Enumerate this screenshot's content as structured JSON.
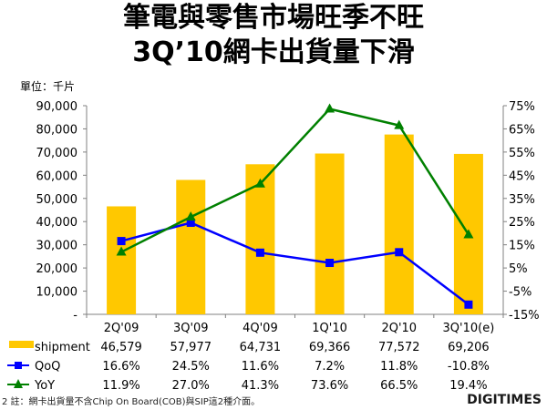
{
  "title_line1": "筆電與零售市場旺季不旺",
  "title_line2": "3Q’10網卡出貨量下滑",
  "unit_label": "單位：千片",
  "footnote": "註：網卡出貨量不含Chip On Board(COB)與SIP這2種介面。",
  "logo": "DIGITIMES",
  "chart_data": {
    "type": "bar",
    "categories": [
      "2Q'09",
      "3Q'09",
      "4Q'09",
      "1Q'10",
      "2Q'10",
      "3Q'10(e)"
    ],
    "left_axis": {
      "ylim": [
        0,
        90000
      ],
      "ticks": [
        "-",
        "10,000",
        "20,000",
        "30,000",
        "40,000",
        "50,000",
        "60,000",
        "70,000",
        "80,000",
        "90,000"
      ]
    },
    "right_axis": {
      "ylim": [
        -15,
        75
      ],
      "ticks": [
        "-15%",
        "-5%",
        "5%",
        "15%",
        "25%",
        "35%",
        "45%",
        "55%",
        "65%",
        "75%"
      ]
    },
    "series": [
      {
        "name": "shipment",
        "kind": "bar",
        "axis": "left",
        "color": "#FFC800",
        "values": [
          46579,
          57977,
          64731,
          69366,
          77572,
          69206
        ],
        "labels": [
          "46,579",
          "57,977",
          "64,731",
          "69,366",
          "77,572",
          "69,206"
        ]
      },
      {
        "name": "QoQ",
        "kind": "line",
        "marker": "square",
        "axis": "right",
        "color": "#0000FF",
        "values": [
          16.6,
          24.5,
          11.6,
          7.2,
          11.8,
          -10.8
        ],
        "labels": [
          "16.6%",
          "24.5%",
          "11.6%",
          "7.2%",
          "11.8%",
          "-10.8%"
        ]
      },
      {
        "name": "YoY",
        "kind": "line",
        "marker": "triangle",
        "axis": "right",
        "color": "#008000",
        "values": [
          11.9,
          27.0,
          41.3,
          73.6,
          66.5,
          19.4
        ],
        "labels": [
          "11.9%",
          "27.0%",
          "41.3%",
          "73.6%",
          "66.5%",
          "19.4%"
        ]
      }
    ],
    "grid": false,
    "legend": "table-below"
  }
}
